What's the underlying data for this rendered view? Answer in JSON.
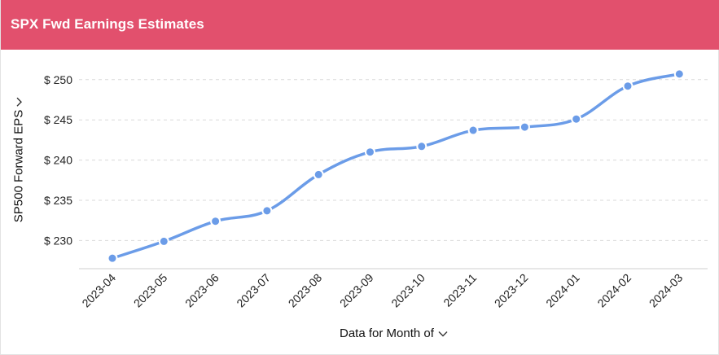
{
  "header": {
    "title": "SPX Fwd Earnings Estimates"
  },
  "colors": {
    "header_bg": "#e2506d",
    "line": "#6b9ce8",
    "grid": "#d9d9d9"
  },
  "axis_controls": {
    "x_dropdown_icon": "chevron-down-icon",
    "y_dropdown_icon": "chevron-down-icon"
  },
  "chart_data": {
    "type": "line",
    "title": "",
    "xlabel": "Data for Month of",
    "ylabel": "SP500 Forward EPS",
    "y_tick_prefix": "$ ",
    "categories": [
      "2023-04",
      "2023-05",
      "2023-06",
      "2023-07",
      "2023-08",
      "2023-09",
      "2023-10",
      "2023-11",
      "2023-12",
      "2024-01",
      "2024-02",
      "2024-03"
    ],
    "series": [
      {
        "values": [
          227.8,
          229.9,
          232.4,
          233.7,
          238.2,
          241.0,
          241.7,
          243.7,
          244.1,
          245.1,
          249.2,
          250.7
        ]
      }
    ],
    "yticks": [
      230,
      235,
      240,
      245,
      250
    ],
    "ylim": [
      226.5,
      251.8
    ],
    "grid": true,
    "legend": "none"
  }
}
